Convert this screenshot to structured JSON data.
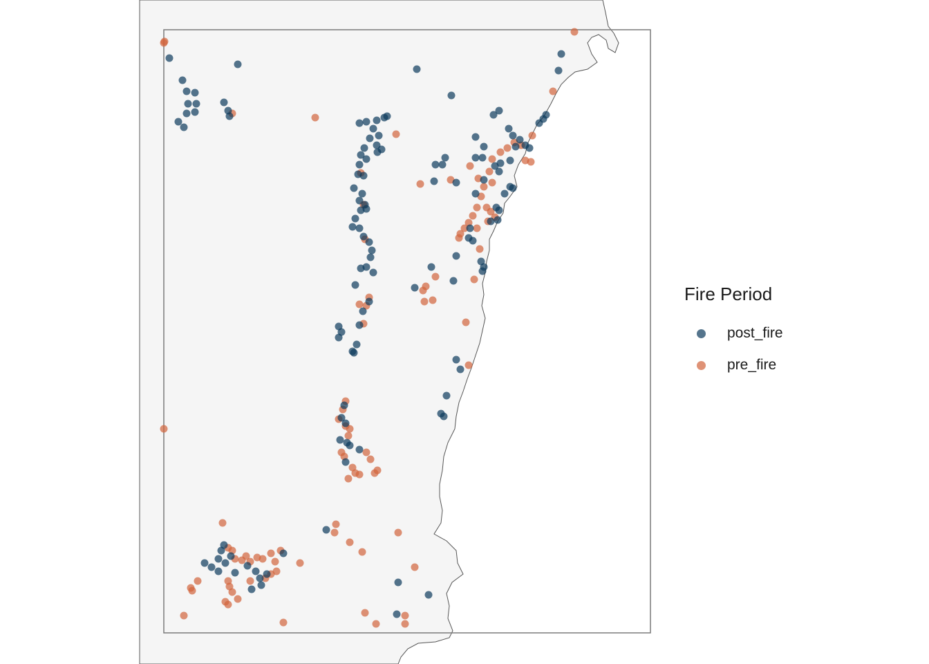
{
  "legend": {
    "title": "Fire Period",
    "items": [
      {
        "label": "post_fire",
        "color": "#0d3b5c"
      },
      {
        "label": "pre_fire",
        "color": "#d2643c"
      }
    ]
  },
  "colors": {
    "land": "#f5f5f5",
    "sea": "#ffffff",
    "frame": "#7a7a7a",
    "coastline": "#555555"
  }
}
